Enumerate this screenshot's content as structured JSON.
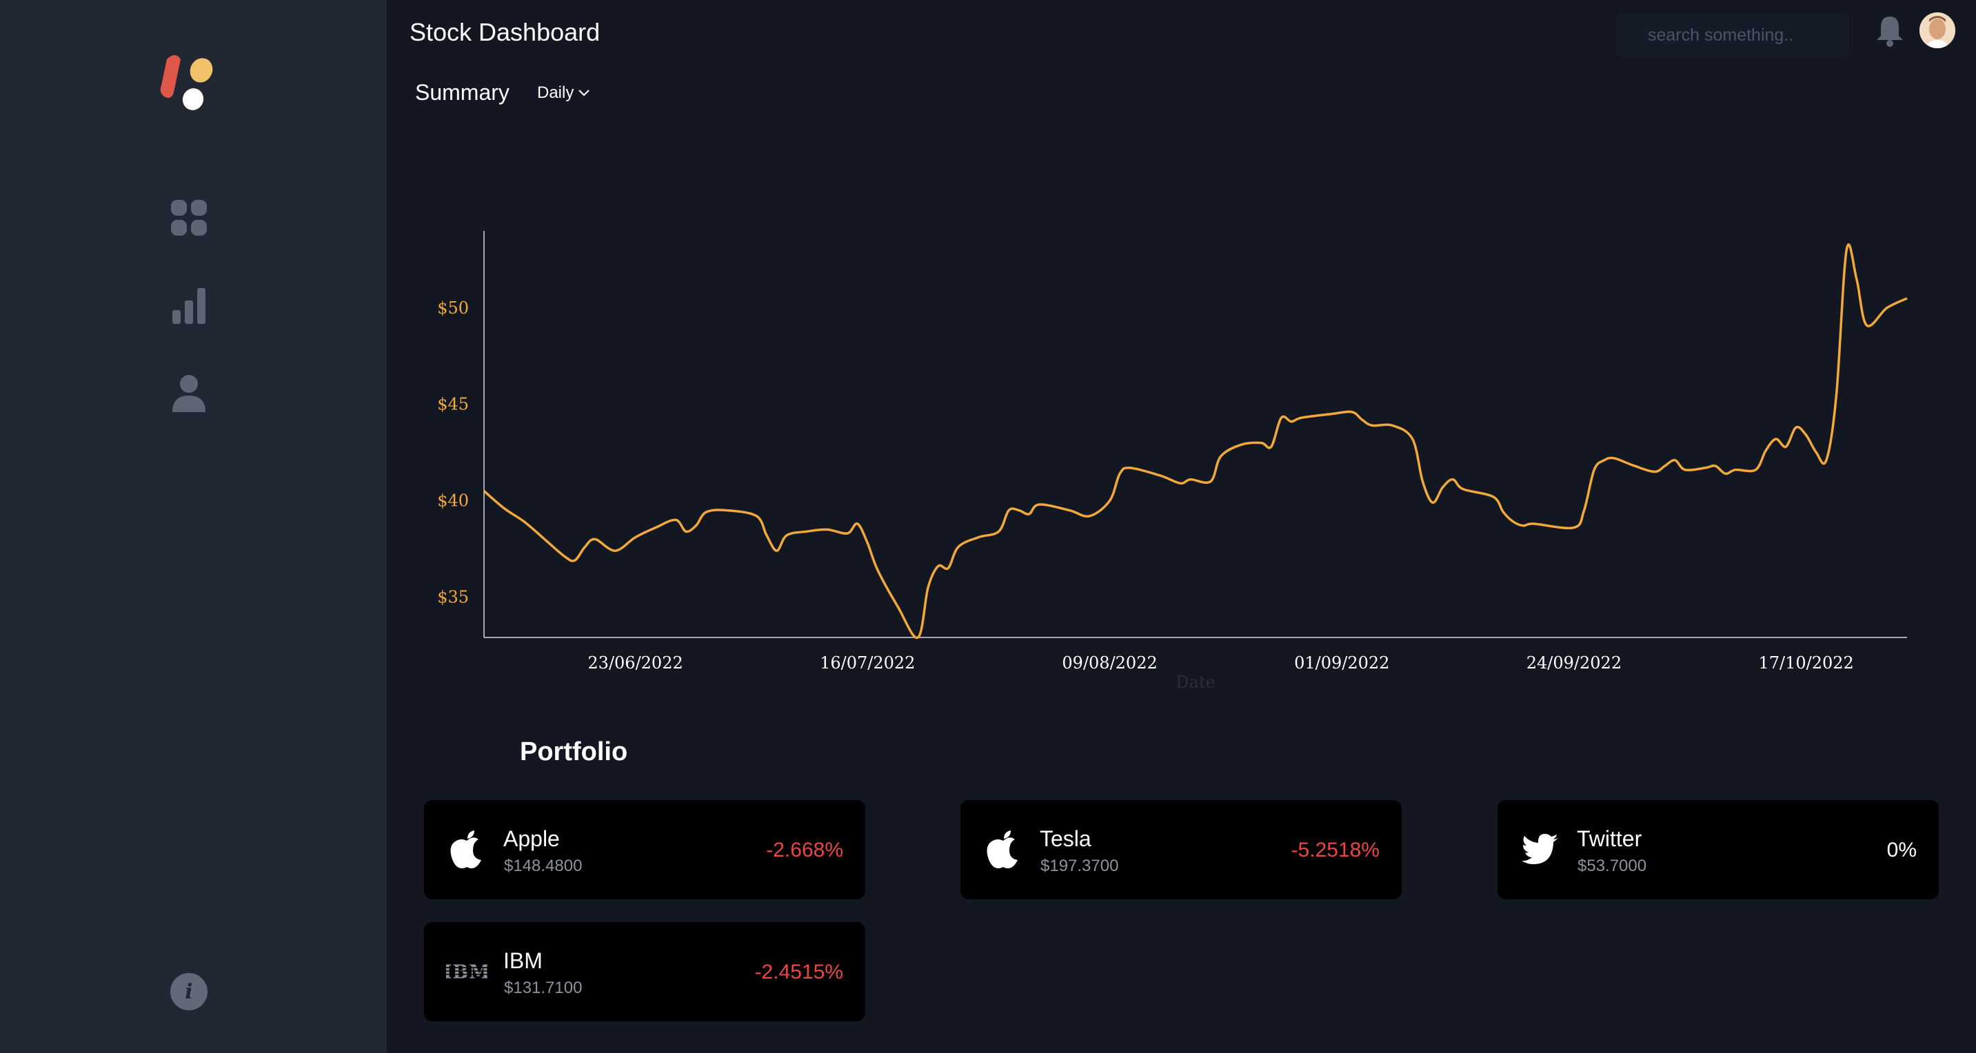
{
  "header": {
    "title": "Stock Dashboard",
    "search_placeholder": "search something.."
  },
  "summary": {
    "title": "Summary",
    "range_selected": "Daily"
  },
  "sidebar": {
    "nav": [
      "dashboard-icon",
      "chart-bars-icon",
      "user-icon"
    ],
    "footer_icon": "info-icon",
    "info_glyph": "i"
  },
  "colors": {
    "background": "#131722",
    "sidebar": "#222734",
    "line": "#f2a93b",
    "negative": "#ef4444",
    "card": "#000000"
  },
  "chart_data": {
    "type": "line",
    "title": "",
    "xlabel": "Date",
    "ylabel": "",
    "ylim": [
      32.9,
      54.0
    ],
    "ytick_values": [
      35,
      40,
      45,
      50
    ],
    "yticks": [
      "$35",
      "$40",
      "$45",
      "$50"
    ],
    "xticks": [
      "23/06/2022",
      "16/07/2022",
      "09/08/2022",
      "01/09/2022",
      "24/09/2022",
      "17/10/2022"
    ],
    "x_start": "2022-06-08",
    "x_end": "2022-10-27",
    "series": [
      {
        "values": [
          [
            "2022-06-08",
            40.5
          ],
          [
            "2022-06-10",
            39.6
          ],
          [
            "2022-06-12",
            38.9
          ],
          [
            "2022-06-14",
            38.0
          ],
          [
            "2022-06-16",
            37.1
          ],
          [
            "2022-06-17",
            36.9
          ],
          [
            "2022-06-18",
            37.6
          ],
          [
            "2022-06-19",
            38.0
          ],
          [
            "2022-06-21",
            37.4
          ],
          [
            "2022-06-23",
            38.1
          ],
          [
            "2022-06-25",
            38.6
          ],
          [
            "2022-06-27",
            39.0
          ],
          [
            "2022-06-28",
            38.4
          ],
          [
            "2022-06-29",
            38.7
          ],
          [
            "2022-06-30",
            39.4
          ],
          [
            "2022-07-02",
            39.5
          ],
          [
            "2022-07-05",
            39.2
          ],
          [
            "2022-07-06",
            38.2
          ],
          [
            "2022-07-07",
            37.4
          ],
          [
            "2022-07-08",
            38.2
          ],
          [
            "2022-07-10",
            38.4
          ],
          [
            "2022-07-12",
            38.5
          ],
          [
            "2022-07-14",
            38.3
          ],
          [
            "2022-07-15",
            38.8
          ],
          [
            "2022-07-16",
            37.8
          ],
          [
            "2022-07-17",
            36.4
          ],
          [
            "2022-07-19",
            34.5
          ],
          [
            "2022-07-21",
            32.9
          ],
          [
            "2022-07-22",
            35.5
          ],
          [
            "2022-07-23",
            36.6
          ],
          [
            "2022-07-24",
            36.5
          ],
          [
            "2022-07-25",
            37.6
          ],
          [
            "2022-07-27",
            38.1
          ],
          [
            "2022-07-29",
            38.4
          ],
          [
            "2022-07-30",
            39.5
          ],
          [
            "2022-07-31",
            39.5
          ],
          [
            "2022-08-01",
            39.3
          ],
          [
            "2022-08-02",
            39.8
          ],
          [
            "2022-08-05",
            39.5
          ],
          [
            "2022-08-07",
            39.2
          ],
          [
            "2022-08-09",
            40.0
          ],
          [
            "2022-08-10",
            41.4
          ],
          [
            "2022-08-11",
            41.7
          ],
          [
            "2022-08-14",
            41.3
          ],
          [
            "2022-08-16",
            40.9
          ],
          [
            "2022-08-17",
            41.1
          ],
          [
            "2022-08-19",
            41.0
          ],
          [
            "2022-08-20",
            42.3
          ],
          [
            "2022-08-22",
            42.9
          ],
          [
            "2022-08-24",
            43.0
          ],
          [
            "2022-08-25",
            42.8
          ],
          [
            "2022-08-26",
            44.3
          ],
          [
            "2022-08-27",
            44.1
          ],
          [
            "2022-08-28",
            44.3
          ],
          [
            "2022-08-31",
            44.5
          ],
          [
            "2022-09-02",
            44.6
          ],
          [
            "2022-09-03",
            44.2
          ],
          [
            "2022-09-04",
            43.9
          ],
          [
            "2022-09-06",
            43.9
          ],
          [
            "2022-09-08",
            43.2
          ],
          [
            "2022-09-09",
            41.0
          ],
          [
            "2022-09-10",
            39.9
          ],
          [
            "2022-09-11",
            40.7
          ],
          [
            "2022-09-12",
            41.1
          ],
          [
            "2022-09-13",
            40.6
          ],
          [
            "2022-09-16",
            40.2
          ],
          [
            "2022-09-17",
            39.4
          ],
          [
            "2022-09-18",
            38.9
          ],
          [
            "2022-09-19",
            38.7
          ],
          [
            "2022-09-20",
            38.8
          ],
          [
            "2022-09-24",
            38.6
          ],
          [
            "2022-09-25",
            39.5
          ],
          [
            "2022-09-26",
            41.6
          ],
          [
            "2022-09-27",
            42.1
          ],
          [
            "2022-09-28",
            42.2
          ],
          [
            "2022-09-30",
            41.8
          ],
          [
            "2022-10-02",
            41.5
          ],
          [
            "2022-10-03",
            41.8
          ],
          [
            "2022-10-04",
            42.1
          ],
          [
            "2022-10-05",
            41.6
          ],
          [
            "2022-10-07",
            41.7
          ],
          [
            "2022-10-08",
            41.8
          ],
          [
            "2022-10-09",
            41.4
          ],
          [
            "2022-10-10",
            41.6
          ],
          [
            "2022-10-12",
            41.6
          ],
          [
            "2022-10-13",
            42.6
          ],
          [
            "2022-10-14",
            43.2
          ],
          [
            "2022-10-15",
            42.8
          ],
          [
            "2022-10-16",
            43.8
          ],
          [
            "2022-10-17",
            43.4
          ],
          [
            "2022-10-18",
            42.5
          ],
          [
            "2022-10-19",
            42.1
          ],
          [
            "2022-10-20",
            45.5
          ],
          [
            "2022-10-21",
            53.0
          ],
          [
            "2022-10-22",
            51.5
          ],
          [
            "2022-10-23",
            49.1
          ],
          [
            "2022-10-25",
            50.0
          ],
          [
            "2022-10-27",
            50.5
          ]
        ]
      }
    ]
  },
  "portfolio": {
    "title": "Portfolio",
    "items": [
      {
        "name": "Apple",
        "price": "$148.4800",
        "change": "-2.668%",
        "icon": "apple-icon"
      },
      {
        "name": "Tesla",
        "price": "$197.3700",
        "change": "-5.2518%",
        "icon": "apple-icon"
      },
      {
        "name": "Twitter",
        "price": "$53.7000",
        "change": "0%",
        "icon": "twitter-icon"
      },
      {
        "name": "IBM",
        "price": "$131.7100",
        "change": "-2.4515%",
        "icon": "ibm-logo",
        "logo_text": "IBM"
      }
    ]
  }
}
